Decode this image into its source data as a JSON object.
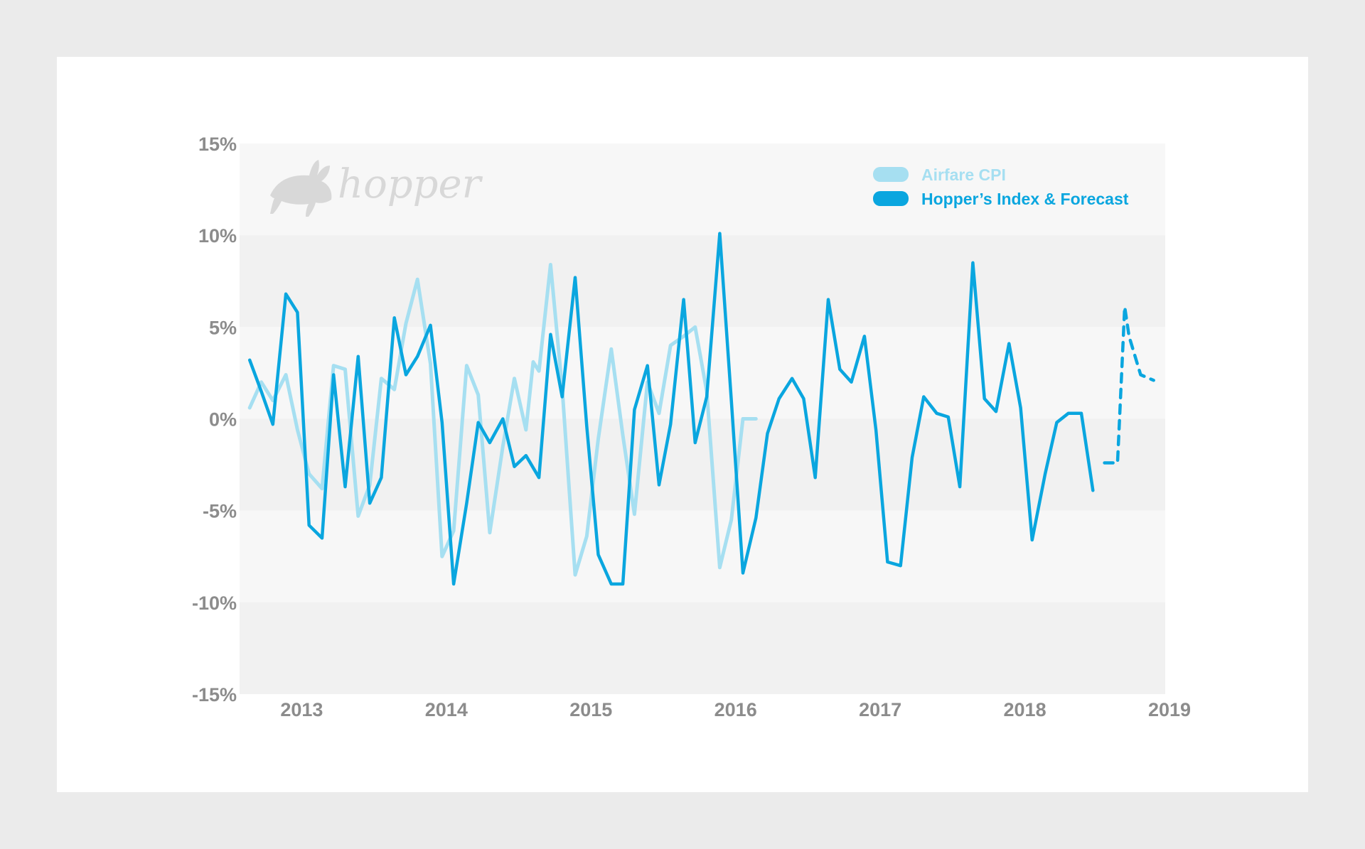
{
  "logo": {
    "text": "hopper"
  },
  "legend": [
    {
      "label": "Airfare CPI",
      "color": "#a6dff1"
    },
    {
      "label": "Hopper’s Index & Forecast",
      "color": "#0aa6df"
    }
  ],
  "chart_data": {
    "type": "line",
    "title": "",
    "xlabel": "",
    "ylabel": "",
    "xlim": [
      2012.6,
      2019.0
    ],
    "ylim": [
      -15,
      15
    ],
    "x_ticks": [
      2013,
      2014,
      2015,
      2016,
      2017,
      2018,
      2019
    ],
    "x_tick_labels": [
      "2013",
      "2014",
      "2015",
      "2016",
      "2017",
      "2018",
      "2019"
    ],
    "y_ticks": [
      15,
      10,
      5,
      0,
      -5,
      -10,
      -15
    ],
    "y_tick_labels": [
      "15%",
      "10%",
      "5%",
      "0%",
      "-5%",
      "-10%",
      "-15%"
    ],
    "grid": "alternating horizontal bands",
    "legend_position": "top-right",
    "series": [
      {
        "name": "Airfare CPI",
        "color": "#a6dff1",
        "x": [
          2012.67,
          2012.75,
          2012.83,
          2012.92,
          2013.0,
          2013.08,
          2013.17,
          2013.25,
          2013.33,
          2013.42,
          2013.5,
          2013.58,
          2013.67,
          2013.75,
          2013.83,
          2013.92,
          2014.0,
          2014.08,
          2014.17,
          2014.25,
          2014.33,
          2014.42,
          2014.5,
          2014.58,
          2014.63,
          2014.67,
          2014.75,
          2014.83,
          2014.92,
          2015.0,
          2015.08,
          2015.17,
          2015.25,
          2015.33,
          2015.42,
          2015.5,
          2015.58,
          2015.67,
          2015.75,
          2015.83,
          2015.92,
          2016.0,
          2016.08,
          2016.17
        ],
        "values": [
          0.6,
          2.0,
          1.0,
          2.4,
          -0.6,
          -3.0,
          -3.8,
          2.9,
          2.7,
          -5.3,
          -3.6,
          2.2,
          1.6,
          5.2,
          7.6,
          3.0,
          -7.5,
          -6.1,
          2.9,
          1.3,
          -6.2,
          -1.5,
          2.2,
          -0.6,
          3.1,
          2.6,
          8.4,
          1.7,
          -8.5,
          -6.4,
          -1.1,
          3.8,
          -0.9,
          -5.2,
          2.0,
          0.3,
          4.0,
          4.5,
          5.0,
          1.5,
          -8.1,
          -5.5,
          0.0,
          0.0
        ]
      },
      {
        "name": "Hopper’s Index & Forecast",
        "color": "#0aa6df",
        "x": [
          2012.67,
          2012.75,
          2012.83,
          2012.92,
          2013.0,
          2013.08,
          2013.17,
          2013.25,
          2013.33,
          2013.42,
          2013.5,
          2013.58,
          2013.67,
          2013.75,
          2013.83,
          2013.92,
          2014.0,
          2014.08,
          2014.17,
          2014.25,
          2014.33,
          2014.42,
          2014.5,
          2014.58,
          2014.67,
          2014.75,
          2014.83,
          2014.92,
          2015.0,
          2015.08,
          2015.17,
          2015.25,
          2015.33,
          2015.42,
          2015.5,
          2015.58,
          2015.67,
          2015.75,
          2015.83,
          2015.92,
          2016.0,
          2016.08,
          2016.17,
          2016.25,
          2016.33,
          2016.42,
          2016.5,
          2016.58,
          2016.67,
          2016.75,
          2016.83,
          2016.92,
          2017.0,
          2017.08,
          2017.17,
          2017.25,
          2017.33,
          2017.42,
          2017.5,
          2017.58,
          2017.67,
          2017.75,
          2017.83,
          2017.92,
          2018.0,
          2018.08,
          2018.17,
          2018.25,
          2018.33,
          2018.42,
          2018.5
        ],
        "values": [
          3.2,
          1.5,
          -0.3,
          6.8,
          5.8,
          -5.8,
          -6.5,
          2.4,
          -3.7,
          3.4,
          -4.6,
          -3.2,
          5.5,
          2.4,
          3.4,
          5.1,
          -0.2,
          -9.0,
          -4.6,
          -0.2,
          -1.3,
          0.0,
          -2.6,
          -2.0,
          -3.2,
          4.6,
          1.2,
          7.7,
          -0.4,
          -7.4,
          -9.0,
          -9.0,
          0.5,
          2.9,
          -3.6,
          -0.3,
          6.5,
          -1.3,
          1.2,
          10.1,
          1.0,
          -8.4,
          -5.4,
          -0.8,
          1.1,
          2.2,
          1.1,
          -3.2,
          6.5,
          2.7,
          2.0,
          4.5,
          -0.6,
          -7.8,
          -8.0,
          -2.1,
          1.2,
          0.3,
          0.1,
          -3.7,
          8.5,
          1.1,
          0.4,
          4.1,
          0.6,
          -6.6,
          -3.0,
          -0.2,
          0.3,
          0.3,
          -3.9
        ]
      },
      {
        "name": "Hopper’s Index & Forecast",
        "style": "forecast",
        "color": "#0aa6df",
        "x": [
          2018.58,
          2018.67,
          2018.72,
          2018.75,
          2018.83,
          2018.92
        ],
        "values": [
          -2.4,
          -2.4,
          6.1,
          4.5,
          2.4,
          2.1
        ]
      }
    ]
  }
}
